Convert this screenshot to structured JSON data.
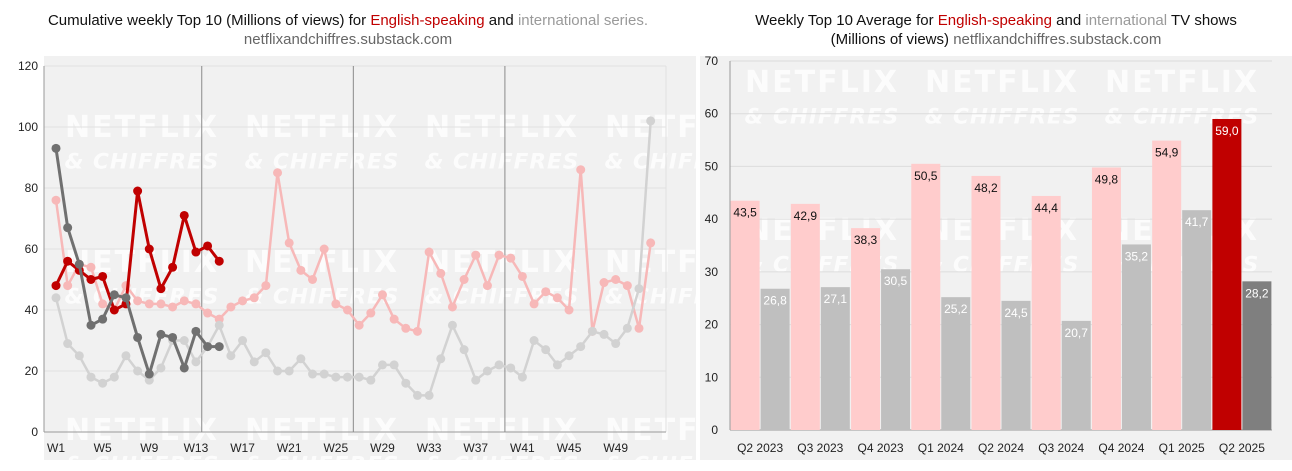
{
  "left_title": {
    "prefix": "Cumulative weekly Top 10 (Millions of views) for ",
    "english": "English-speaking",
    "and": " and ",
    "intl": "international series.",
    "source": "netflixandchiffres.substack.com"
  },
  "right_title": {
    "prefix": "Weekly Top 10 Average for ",
    "english": "English-speaking",
    "and": " and ",
    "intl": "international",
    "suffix": " TV shows",
    "line2_prefix": "(Millions of views) ",
    "source": "netflixandchiffres.substack.com"
  },
  "watermark": {
    "line1": "NETFLIX",
    "line2": "& CHIFFRES"
  },
  "colors": {
    "english_current": "#c00000",
    "english_past": "#f7b8b8",
    "intl_current": "#707070",
    "intl_past": "#d2d2d2",
    "bar_english": "#ffcccc",
    "bar_intl": "#bfbfbf",
    "bar_english_highlight": "#c00000",
    "bar_intl_highlight": "#7f7f7f"
  },
  "chart_data": [
    {
      "type": "line",
      "ylim": [
        0,
        120
      ],
      "yticks": [
        0,
        20,
        40,
        60,
        80,
        100,
        120
      ],
      "x_tick_labels": [
        "W1",
        "W5",
        "W9",
        "W13",
        "W17",
        "W21",
        "W25",
        "W29",
        "W33",
        "W37",
        "W41",
        "W45",
        "W49"
      ],
      "x_tick_weeks": [
        1,
        5,
        9,
        13,
        17,
        21,
        25,
        29,
        33,
        37,
        41,
        45,
        49
      ],
      "vertical_lines_weeks": [
        13.5,
        26.5,
        39.5
      ],
      "grid": true,
      "series": [
        {
          "role": "english_past",
          "values": [
            76,
            48,
            55,
            54,
            42,
            40,
            48,
            43,
            42,
            42,
            41,
            43,
            42,
            39,
            37,
            41,
            43,
            44,
            48,
            85,
            62,
            53,
            50,
            60,
            42,
            40,
            35,
            39,
            45,
            37,
            34,
            33,
            59,
            52,
            41,
            50,
            58,
            48,
            58,
            57,
            51,
            42,
            46,
            44,
            40,
            86,
            33,
            49,
            50,
            48,
            34,
            62
          ]
        },
        {
          "role": "intl_past",
          "values": [
            44,
            29,
            25,
            18,
            16,
            18,
            25,
            20,
            17,
            21,
            30,
            30,
            23,
            28,
            35,
            25,
            30,
            23,
            26,
            20,
            20,
            24,
            19,
            19,
            18,
            18,
            18,
            17,
            22,
            22,
            16,
            12,
            12,
            24,
            35,
            27,
            17,
            20,
            22,
            21,
            18,
            30,
            27,
            22,
            25,
            28,
            33,
            32,
            29,
            34,
            47,
            102
          ]
        },
        {
          "role": "english_current",
          "values": [
            48,
            56,
            53,
            50,
            51,
            40,
            42,
            79,
            60,
            47,
            54,
            71,
            59,
            61,
            56
          ]
        },
        {
          "role": "intl_current",
          "values": [
            93,
            67,
            55,
            35,
            37,
            45,
            44,
            31,
            19,
            32,
            31,
            21,
            33,
            28,
            28
          ]
        }
      ]
    },
    {
      "type": "bar",
      "ylim": [
        0,
        70
      ],
      "yticks": [
        0,
        10,
        20,
        30,
        40,
        50,
        60,
        70
      ],
      "categories": [
        "Q2 2023",
        "Q3 2023",
        "Q4 2023",
        "Q1 2024",
        "Q2 2024",
        "Q3 2024",
        "Q4 2024",
        "Q1 2025",
        "Q2 2025"
      ],
      "grid": true,
      "series": [
        {
          "role": "english",
          "values": [
            43.5,
            42.9,
            38.3,
            50.5,
            48.2,
            44.4,
            49.8,
            54.9,
            59.0
          ],
          "labels": [
            "43,5",
            "42,9",
            "38,3",
            "50,5",
            "48,2",
            "44,4",
            "49,8",
            "54,9",
            "59,0"
          ]
        },
        {
          "role": "intl",
          "values": [
            26.8,
            27.1,
            30.5,
            25.2,
            24.5,
            20.7,
            35.2,
            41.7,
            28.2
          ],
          "labels": [
            "26,8",
            "27,1",
            "30,5",
            "25,2",
            "24,5",
            "20,7",
            "35,2",
            "41,7",
            "28,2"
          ]
        }
      ]
    }
  ]
}
